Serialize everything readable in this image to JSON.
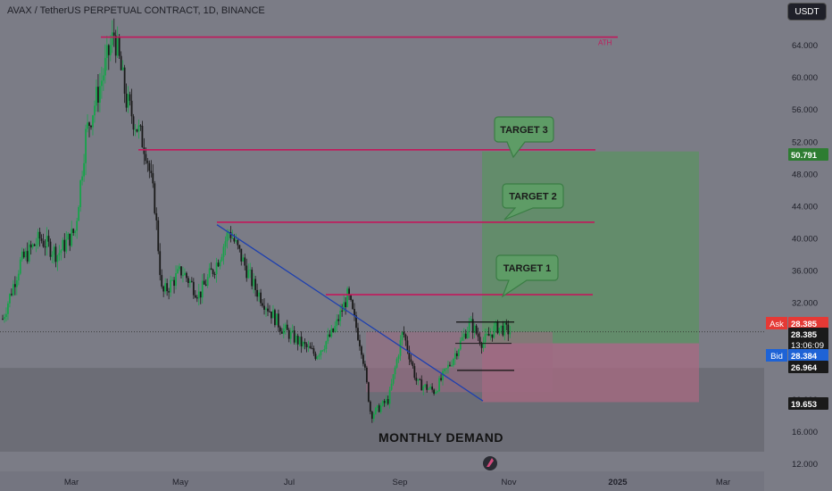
{
  "header": {
    "title": "AVAX / TetherUS PERPETUAL CONTRACT, 1D, BINANCE",
    "currency_button": "USDT"
  },
  "colors": {
    "background": "#7b7c86",
    "demand_zone": "#6c6d76",
    "bull": "#17a34a",
    "bear": "#1a1a1a",
    "level_line": "#c2185b",
    "trendline": "#1e40af",
    "target_fill": "#5f8f66",
    "stop_fill": "#a86a82",
    "callout_fill": "#5e9c66",
    "callout_border": "#3a7d44"
  },
  "chart_data": {
    "type": "candlestick",
    "x_ticks": [
      "Mar",
      "May",
      "Jul",
      "Sep",
      "Nov",
      "2025",
      "Mar"
    ],
    "y_ticks": [
      "64.000",
      "60.000",
      "56.000",
      "52.000",
      "48.000",
      "44.000",
      "40.000",
      "36.000",
      "32.000",
      "28.000",
      "24.000",
      "20.000",
      "16.000",
      "12.000"
    ],
    "ylim": [
      11.5,
      66.5
    ],
    "price_path": [
      [
        "2024-01-15",
        30
      ],
      [
        "2024-01-25",
        37
      ],
      [
        "2024-02-05",
        40
      ],
      [
        "2024-02-15",
        38
      ],
      [
        "2024-02-25",
        41
      ],
      [
        "2024-03-02",
        53
      ],
      [
        "2024-03-10",
        59
      ],
      [
        "2024-03-18",
        65.5
      ],
      [
        "2024-03-25",
        57
      ],
      [
        "2024-04-05",
        51
      ],
      [
        "2024-04-10",
        44
      ],
      [
        "2024-04-14",
        33
      ],
      [
        "2024-04-25",
        36
      ],
      [
        "2024-05-05",
        33
      ],
      [
        "2024-05-15",
        37
      ],
      [
        "2024-05-22",
        41
      ],
      [
        "2024-06-05",
        34
      ],
      [
        "2024-06-20",
        29
      ],
      [
        "2024-07-01",
        27
      ],
      [
        "2024-07-10",
        25.5
      ],
      [
        "2024-07-20",
        28.5
      ],
      [
        "2024-07-28",
        33
      ],
      [
        "2024-08-05",
        26
      ],
      [
        "2024-08-10",
        18
      ],
      [
        "2024-08-20",
        20
      ],
      [
        "2024-08-28",
        28.5
      ],
      [
        "2024-09-05",
        22
      ],
      [
        "2024-09-15",
        21
      ],
      [
        "2024-09-25",
        25
      ],
      [
        "2024-10-05",
        29.5
      ],
      [
        "2024-10-12",
        27
      ],
      [
        "2024-10-20",
        29
      ],
      [
        "2024-10-28",
        28.4
      ]
    ],
    "levels": [
      {
        "label": "ATH",
        "price": 65.0
      },
      {
        "label": "",
        "price": 51.0
      },
      {
        "label": "",
        "price": 42.0
      },
      {
        "label": "",
        "price": 33.0
      }
    ],
    "callouts": [
      "TARGET 3",
      "TARGET 2",
      "TARGET 1"
    ],
    "zone_label": "MONTHLY DEMAND",
    "price_tags": [
      {
        "label": "",
        "value": "50.791",
        "color": "#2e7d32"
      },
      {
        "label": "Ask",
        "value": "28.385",
        "color": "#e53935"
      },
      {
        "label": "",
        "value": "28.385",
        "sub": "13:06:09",
        "color": "#1a1a1a"
      },
      {
        "label": "Bid",
        "value": "28.384",
        "color": "#1e63d6"
      },
      {
        "label": "",
        "value": "26.964",
        "color": "#1a1a1a"
      },
      {
        "label": "",
        "value": "19.653",
        "color": "#1a1a1a"
      }
    ]
  }
}
